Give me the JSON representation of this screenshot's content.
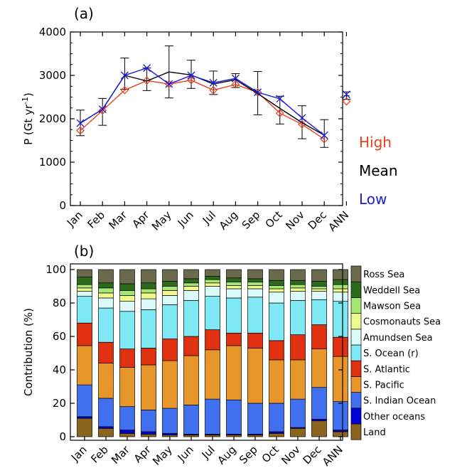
{
  "chart_data": [
    {
      "type": "line",
      "panel_label": "(a)",
      "ylabel": "P (Gt yr",
      "ylabel_sup": "-1",
      "ylabel_end": ")",
      "ylim": [
        0,
        4000
      ],
      "yticks": [
        "0",
        "1000",
        "2000",
        "3000",
        "4000"
      ],
      "categories": [
        "Jan",
        "Feb",
        "Mar",
        "Apr",
        "May",
        "Jun",
        "Jul",
        "Aug",
        "Sep",
        "Oct",
        "Nov",
        "Dec",
        "ANN"
      ],
      "series": [
        {
          "name": "High",
          "color": "#e8401c",
          "marker": "diamond",
          "values": [
            1730,
            2190,
            2660,
            2880,
            2800,
            2890,
            2660,
            2790,
            2610,
            2130,
            1870,
            1530,
            2400
          ]
        },
        {
          "name": "Mean",
          "color": "#000000",
          "marker": "none",
          "values": [
            1900,
            2220,
            3000,
            2870,
            3080,
            3010,
            2800,
            2900,
            2580,
            2240,
            1910,
            1620,
            2530
          ],
          "err_low": [
            1610,
            1850,
            2680,
            2650,
            2480,
            2700,
            2560,
            2720,
            2090,
            1880,
            1540,
            1340,
            2450
          ],
          "err_high": [
            2200,
            2470,
            3400,
            3170,
            3680,
            3350,
            3100,
            3040,
            3090,
            2520,
            2300,
            1980,
            2620
          ]
        },
        {
          "name": "Low",
          "color": "#1a1adc",
          "marker": "x",
          "values": [
            1900,
            2220,
            3000,
            3170,
            2800,
            3000,
            2830,
            2930,
            2610,
            2460,
            2020,
            1620,
            2560
          ]
        }
      ]
    },
    {
      "type": "bar",
      "stacked": true,
      "panel_label": "(b)",
      "ylabel": "Contribution (%)",
      "ylim": [
        0,
        100
      ],
      "yticks": [
        "0",
        "20",
        "40",
        "60",
        "80",
        "100"
      ],
      "categories": [
        "Jan",
        "Feb",
        "Mar",
        "Apr",
        "May",
        "Jun",
        "Jul",
        "Aug",
        "Sep",
        "Oct",
        "Nov",
        "Dec",
        "ANN"
      ],
      "series": [
        {
          "name": "Land",
          "color": "#8b6420",
          "values": [
            11,
            5,
            2,
            1.5,
            1,
            1,
            1,
            1,
            1,
            2,
            5,
            9.5,
            3
          ]
        },
        {
          "name": "Other oceans",
          "color": "#0000d8",
          "values": [
            1,
            1,
            2,
            1.5,
            1,
            0.5,
            0.5,
            0.5,
            0.5,
            1,
            0.5,
            1,
            1
          ]
        },
        {
          "name": "S. Indian Ocean",
          "color": "#4070f0",
          "values": [
            19,
            17,
            14,
            13,
            15,
            17.5,
            21,
            20.5,
            18.5,
            17,
            17,
            19,
            17
          ]
        },
        {
          "name": "S. Pacific",
          "color": "#e8962a",
          "values": [
            23.5,
            21,
            23.5,
            27,
            28.5,
            29.5,
            29.5,
            32.5,
            33,
            26,
            23.5,
            23,
            27
          ]
        },
        {
          "name": "S. Atlantic",
          "color": "#e03010",
          "values": [
            13.5,
            12.5,
            11,
            10,
            13,
            11.5,
            12,
            7.5,
            9,
            11.5,
            15,
            14.5,
            11.5
          ]
        },
        {
          "name": "S. Ocean (r)",
          "color": "#7ee8f4",
          "values": [
            16,
            20.5,
            22.5,
            23,
            20.5,
            21.5,
            20,
            21,
            21.5,
            22.5,
            20.5,
            15,
            21.5
          ]
        },
        {
          "name": "Amundsen Sea",
          "color": "#dcfafa",
          "values": [
            3,
            6,
            6,
            6.5,
            5.5,
            6,
            6,
            5.5,
            5,
            6.5,
            5.5,
            5,
            5.5
          ]
        },
        {
          "name": "Cosmonauts Sea",
          "color": "#f0fa8c",
          "values": [
            2,
            3,
            3.5,
            3.5,
            3,
            2.5,
            2,
            2,
            2,
            2,
            2,
            1.5,
            2
          ]
        },
        {
          "name": "Mawson Sea",
          "color": "#a6e672",
          "values": [
            2,
            3,
            3,
            2.5,
            2.5,
            2,
            2,
            2,
            2,
            2,
            2,
            1.5,
            2.5
          ]
        },
        {
          "name": "Weddell Sea",
          "color": "#2e6a1c",
          "values": [
            4.5,
            3,
            4,
            3.5,
            3,
            2.5,
            2,
            2.5,
            2,
            3,
            2.5,
            3,
            3
          ]
        },
        {
          "name": "Ross Sea",
          "color": "#6b6a4c",
          "values": [
            4.5,
            8,
            8.5,
            8,
            7,
            5.5,
            4,
            5,
            5.5,
            6.5,
            6.5,
            7,
            6
          ]
        }
      ]
    }
  ]
}
